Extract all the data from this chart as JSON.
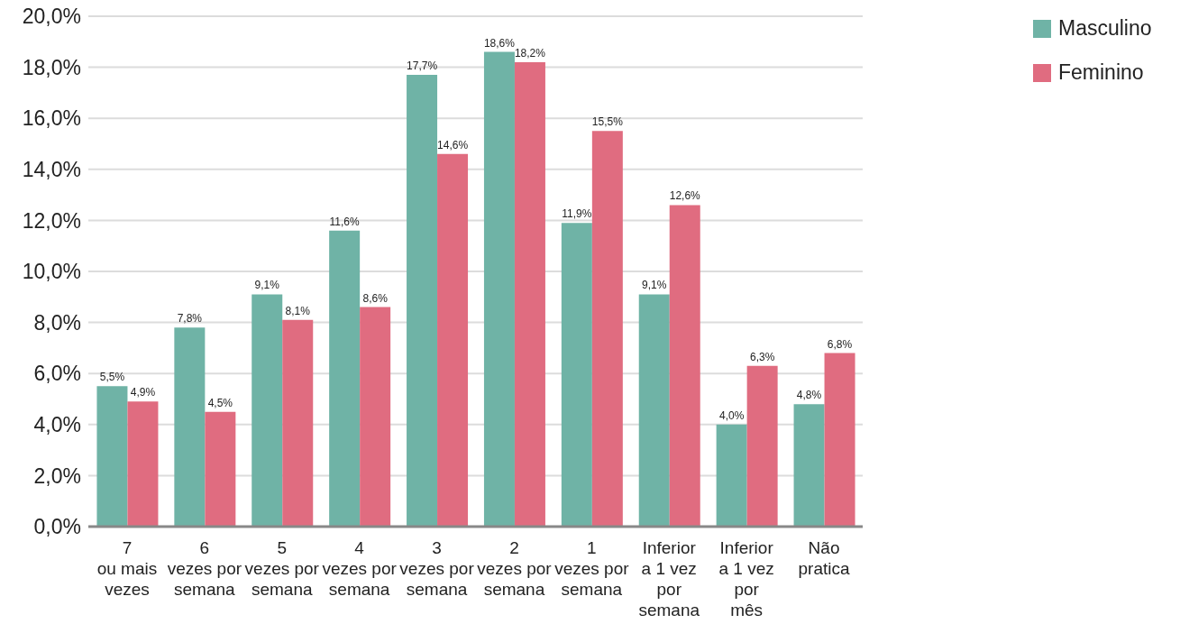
{
  "chart_data": {
    "type": "bar",
    "categories": [
      "7\nou mais\nvezes",
      "6\nvezes por\nsemana",
      "5\nvezes por\nsemana",
      "4\nvezes por\nsemana",
      "3\nvezes por\nsemana",
      "2\nvezes por\nsemana",
      "1\nvezes por\nsemana",
      "Inferior\na 1 vez\npor\nsemana",
      "Inferior\na 1 vez\npor\nmês",
      "Não\npratica"
    ],
    "series": [
      {
        "name": "Masculino",
        "color": "#6fb3a6",
        "values": [
          5.5,
          7.8,
          9.1,
          11.6,
          17.7,
          18.6,
          11.9,
          9.1,
          4.0,
          4.8
        ],
        "value_labels": [
          "5,5%",
          "7,8%",
          "9,1%",
          "11,6%",
          "17,7%",
          "18,6%",
          "11,9%",
          "9,1%",
          "4,0%",
          "4,8%"
        ]
      },
      {
        "name": "Feminino",
        "color": "#e06c80",
        "values": [
          4.9,
          4.5,
          8.1,
          8.6,
          14.6,
          18.2,
          15.5,
          12.6,
          6.3,
          6.8
        ],
        "value_labels": [
          "4,9%",
          "4,5%",
          "8,1%",
          "8,6%",
          "14,6%",
          "18,2%",
          "15,5%",
          "12,6%",
          "6,3%",
          "6,8%"
        ]
      }
    ],
    "ylim": [
      0,
      20
    ],
    "yticks": [
      {
        "value": 0,
        "label": "0,0%"
      },
      {
        "value": 2,
        "label": "2,0%"
      },
      {
        "value": 4,
        "label": "4,0%"
      },
      {
        "value": 6,
        "label": "6,0%"
      },
      {
        "value": 8,
        "label": "8,0%"
      },
      {
        "value": 10,
        "label": "10,0%"
      },
      {
        "value": 12,
        "label": "12,0%"
      },
      {
        "value": 14,
        "label": "14,0%"
      },
      {
        "value": 16,
        "label": "16,0%"
      },
      {
        "value": 18,
        "label": "18,0%"
      },
      {
        "value": 20,
        "label": "20,0%"
      }
    ],
    "grid": "y",
    "legend": "top right"
  }
}
